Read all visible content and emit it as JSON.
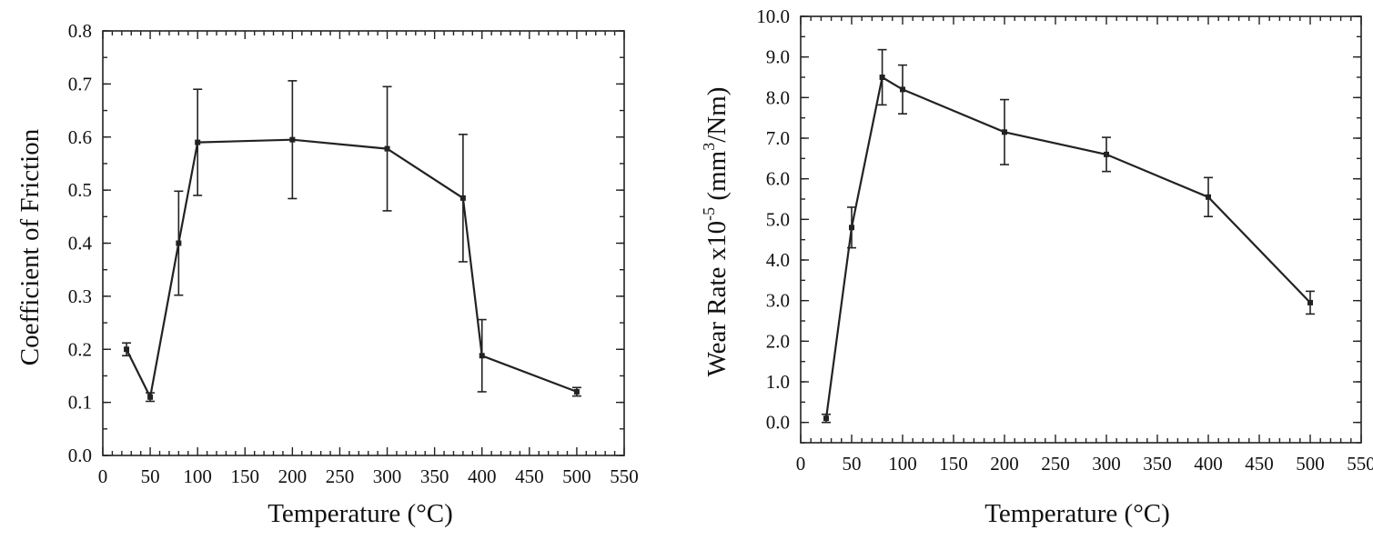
{
  "chart_data": [
    {
      "type": "line",
      "xlabel": "Temperature (°C)",
      "ylabel": "Coefficient of Friction",
      "xlim": [
        0,
        550
      ],
      "ylim": [
        0.0,
        0.8
      ],
      "x_ticks": [
        "0",
        "50",
        "100",
        "150",
        "200",
        "250",
        "300",
        "350",
        "400",
        "450",
        "500",
        "550"
      ],
      "y_ticks": [
        "0.0",
        "0.1",
        "0.2",
        "0.3",
        "0.4",
        "0.5",
        "0.6",
        "0.7",
        "0.8"
      ],
      "grid": false,
      "series": [
        {
          "x": [
            25,
            50,
            80,
            100,
            200,
            300,
            380,
            400,
            500
          ],
          "y": [
            0.2,
            0.11,
            0.4,
            0.59,
            0.595,
            0.578,
            0.485,
            0.188,
            0.12
          ],
          "err": [
            0.012,
            0.008,
            0.098,
            0.1,
            0.111,
            0.117,
            0.12,
            0.068,
            0.008
          ]
        }
      ]
    },
    {
      "type": "line",
      "xlabel": "Temperature (°C)",
      "ylabel_parts": [
        "Wear Rate x10",
        "-5",
        " (mm",
        "3",
        "/Nm)"
      ],
      "xlim": [
        0,
        550
      ],
      "ylim": [
        -0.5,
        10.0
      ],
      "x_ticks": [
        "0",
        "50",
        "100",
        "150",
        "200",
        "250",
        "300",
        "350",
        "400",
        "450",
        "500",
        "550"
      ],
      "y_ticks": [
        "0.0",
        "1.0",
        "2.0",
        "3.0",
        "4.0",
        "5.0",
        "6.0",
        "7.0",
        "8.0",
        "9.0",
        "10.0"
      ],
      "grid": false,
      "series": [
        {
          "x": [
            25,
            50,
            80,
            100,
            200,
            300,
            400,
            500
          ],
          "y": [
            0.1,
            4.8,
            8.5,
            8.2,
            7.15,
            6.6,
            5.55,
            2.95
          ],
          "err": [
            0.1,
            0.5,
            0.68,
            0.6,
            0.8,
            0.42,
            0.48,
            0.28
          ]
        }
      ]
    }
  ]
}
